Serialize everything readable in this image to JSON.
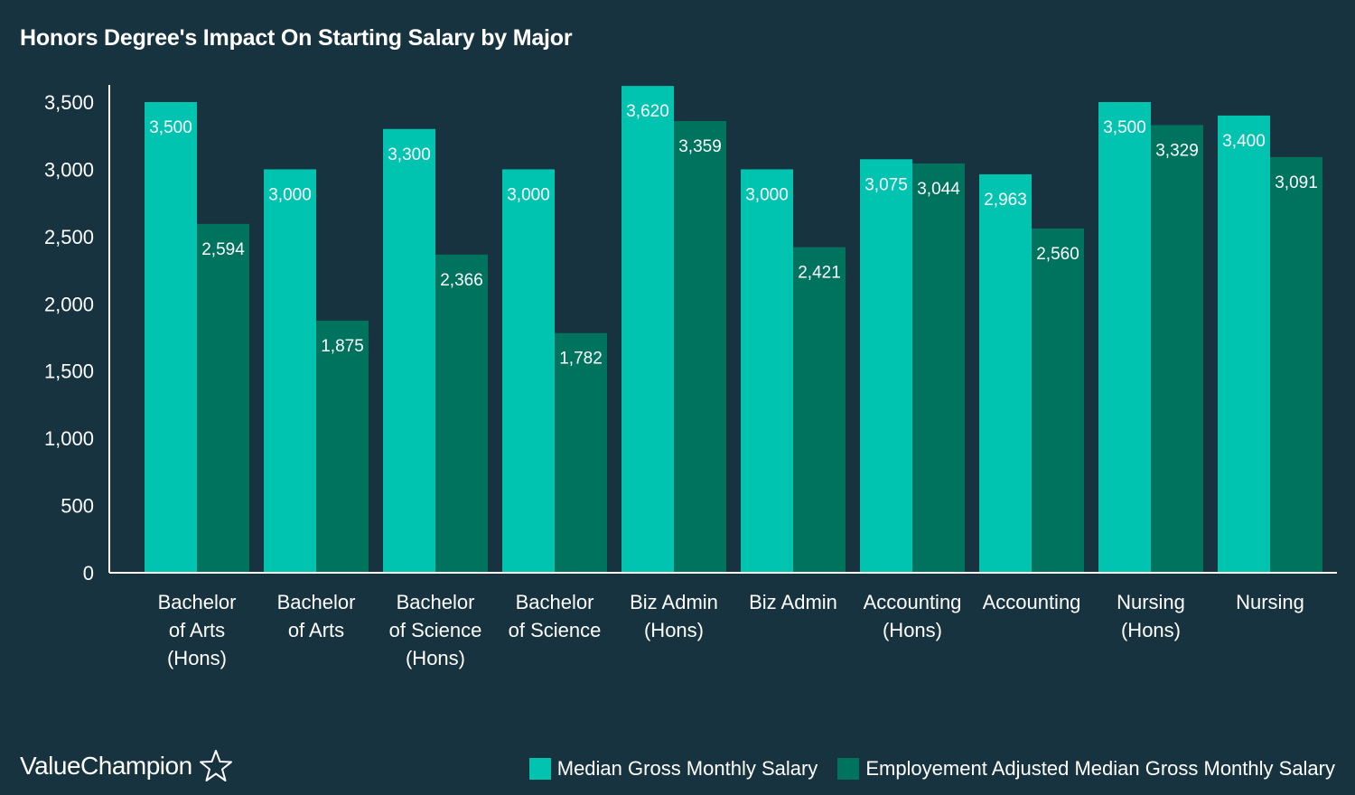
{
  "chart_data": {
    "type": "bar",
    "title": "Honors Degree's Impact On Starting Salary by Major",
    "categories": [
      [
        "Bachelor",
        "of Arts",
        "(Hons)"
      ],
      [
        "Bachelor",
        "of Arts"
      ],
      [
        "Bachelor",
        "of Science",
        "(Hons)"
      ],
      [
        "Bachelor",
        "of Science"
      ],
      [
        "Biz Admin",
        "(Hons)"
      ],
      [
        "Biz Admin"
      ],
      [
        "Accounting",
        "(Hons)"
      ],
      [
        "Accounting"
      ],
      [
        "Nursing",
        "(Hons)"
      ],
      [
        "Nursing"
      ]
    ],
    "series": [
      {
        "name": "Median Gross Monthly Salary",
        "color": "#00c4b0",
        "values": [
          3500,
          3000,
          3300,
          3000,
          3620,
          3000,
          3075,
          2963,
          3500,
          3400
        ],
        "labels": [
          "3,500",
          "3,000",
          "3,300",
          "3,000",
          "3,620",
          "3,000",
          "3,075",
          "2,963",
          "3,500",
          "3,400"
        ]
      },
      {
        "name": "Employement Adjusted Median Gross Monthly Salary",
        "color": "#00735e",
        "values": [
          2594,
          1875,
          2366,
          1782,
          3359,
          2421,
          3044,
          2560,
          3329,
          3091
        ],
        "labels": [
          "2,594",
          "1,875",
          "2,366",
          "1,782",
          "3,359",
          "2,421",
          "3,044",
          "2,560",
          "3,329",
          "3,091"
        ]
      }
    ],
    "yticks": [
      0,
      500,
      1000,
      1500,
      2000,
      2500,
      3000,
      3500
    ],
    "ytick_labels": [
      "0",
      "500",
      "1,000",
      "1,500",
      "2,000",
      "2,500",
      "3,000",
      "3,500"
    ],
    "ylim": [
      0,
      3620
    ],
    "xlabel": "",
    "ylabel": "",
    "legend": "bottom-right",
    "grid": false
  },
  "brand": {
    "name": "ValueChampion",
    "icon": "star-outline-icon"
  },
  "colors": {
    "background": "#17333f",
    "axis": "#ffffff"
  }
}
